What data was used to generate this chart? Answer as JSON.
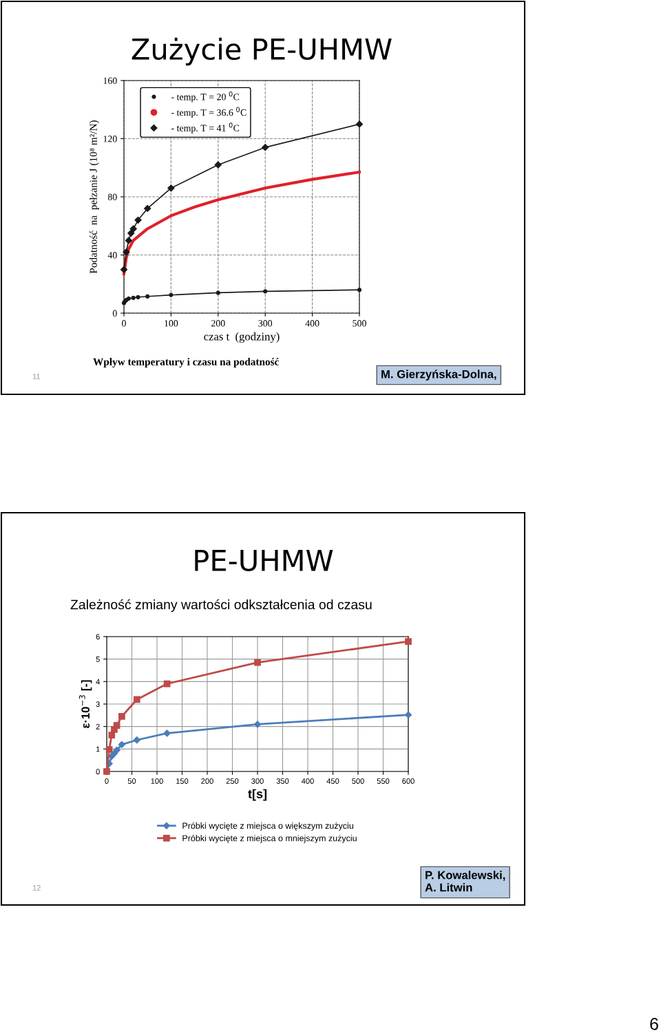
{
  "chart_data": [
    {
      "type": "line",
      "title": "Zużycie PE-UHMW",
      "xlabel": "czas t  (godziny)",
      "ylabel": "Podatność  na  pełzanie J (10⁸ m²/N)",
      "annotations": [
        "Wpływ temperatury i czasu na podatność",
        "11",
        "M. Gierzyńska-Dolna,"
      ],
      "xlim": [
        0,
        500
      ],
      "xticks": [
        0,
        100,
        200,
        300,
        400,
        500
      ],
      "ylim": [
        0,
        160
      ],
      "yticks": [
        0,
        40,
        80,
        120,
        160
      ],
      "grid": true,
      "legend": "top left",
      "series": [
        {
          "name": "- temp. T = 20 $^{0}$C",
          "color": "#1a1a1a",
          "marker": "circle",
          "x": [
            0,
            2,
            5,
            10,
            20,
            30,
            50,
            100,
            200,
            300,
            500
          ],
          "values": [
            7,
            8,
            9,
            10,
            10.5,
            11,
            11.5,
            12.5,
            14,
            15,
            16
          ]
        },
        {
          "name": "- temp. T = 36.6 $^{0}$C",
          "color": "#e0202a",
          "marker": "none",
          "x": [
            0,
            5,
            10,
            20,
            50,
            100,
            150,
            200,
            300,
            400,
            500
          ],
          "values": [
            27,
            38,
            44,
            50,
            58,
            67,
            73,
            78,
            86,
            92,
            97
          ]
        },
        {
          "name": "- temp. T = 41 $^{0}$C",
          "color": "#1a1a1a",
          "marker": "diamond",
          "x": [
            0,
            5,
            10,
            15,
            20,
            30,
            50,
            100,
            200,
            300,
            500
          ],
          "values": [
            30,
            42,
            50,
            55,
            58,
            64,
            72,
            86,
            102,
            114,
            130
          ]
        }
      ]
    },
    {
      "type": "line",
      "title": "PE-UHMW",
      "subtitle": "Zależność zmiany wartości odkształcenia od czasu",
      "xlabel": "t[s]",
      "ylabel": "ε·10$^{−3}$ [-]",
      "annotations": [
        "12",
        "P. Kowalewski,\nA. Litwin",
        "6"
      ],
      "xlim": [
        0,
        600
      ],
      "xticks": [
        0,
        50,
        100,
        150,
        200,
        250,
        300,
        350,
        400,
        450,
        500,
        550,
        600
      ],
      "ylim": [
        0,
        6
      ],
      "yticks": [
        0,
        1,
        2,
        3,
        4,
        5,
        6
      ],
      "grid": true,
      "legend": "bottom",
      "series": [
        {
          "name": "Próbki wycięte z miejsca o większym zużyciu",
          "color": "#4a7ebb",
          "marker": "diamond",
          "x": [
            0,
            5,
            10,
            15,
            20,
            30,
            60,
            120,
            300,
            600
          ],
          "values": [
            0,
            0.35,
            0.68,
            0.8,
            0.95,
            1.2,
            1.4,
            1.7,
            2.1,
            2.52
          ]
        },
        {
          "name": "Próbki wycięte z miejsca o mniejszym zużyciu",
          "color": "#be4b48",
          "marker": "square",
          "x": [
            0,
            5,
            10,
            15,
            20,
            30,
            60,
            120,
            300,
            600
          ],
          "values": [
            0,
            0.98,
            1.62,
            1.87,
            2.05,
            2.45,
            3.2,
            3.9,
            4.85,
            5.78
          ]
        }
      ]
    }
  ]
}
